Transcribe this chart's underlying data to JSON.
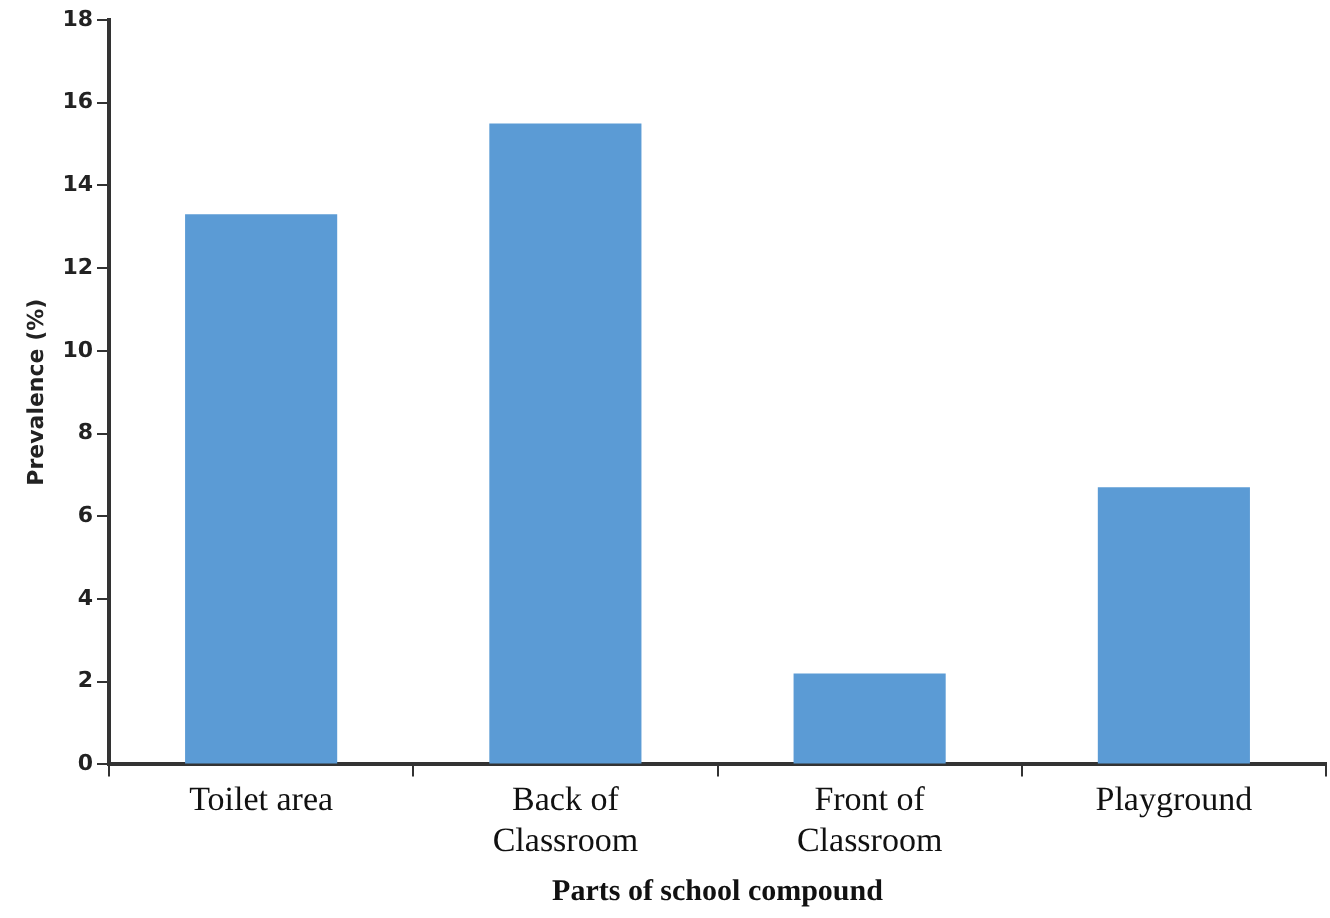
{
  "chart_data": {
    "type": "bar",
    "xlabel": "Parts of school compound",
    "ylabel": "Prevalence (%)",
    "categories": [
      "Toilet area",
      "Back of Classroom",
      "Front of Classroom",
      "Playground"
    ],
    "values": [
      13.3,
      15.5,
      2.2,
      6.7
    ],
    "color": "#5b9bd5",
    "ylim": [
      0,
      18
    ],
    "yticks": [
      0,
      2,
      4,
      6,
      8,
      10,
      12,
      14,
      16,
      18
    ],
    "grid": false,
    "legend": false
  }
}
